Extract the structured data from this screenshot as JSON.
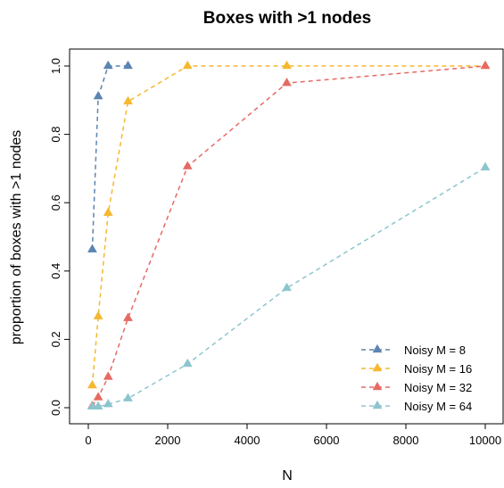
{
  "chart_data": {
    "type": "line",
    "title": "Boxes with >1 nodes",
    "xlabel": "N",
    "ylabel": "proportion of boxes with >1 nodes",
    "xlim": [
      0,
      10000
    ],
    "ylim": [
      0,
      1
    ],
    "x_ticks": [
      0,
      2000,
      4000,
      6000,
      8000,
      10000
    ],
    "y_ticks": [
      0.0,
      0.2,
      0.4,
      0.6,
      0.8,
      1.0
    ],
    "x_tick_labels": [
      "0",
      "2000",
      "4000",
      "6000",
      "8000",
      "10000"
    ],
    "y_tick_labels": [
      "0.0",
      "0.2",
      "0.4",
      "0.6",
      "0.8",
      "1.0"
    ],
    "grid": false,
    "legend_position": "bottom-right",
    "series": [
      {
        "name": "Noisy M = 8",
        "color": "#5b84b1",
        "marker": "triangle",
        "line_style": "dashed",
        "x": [
          100,
          250,
          500,
          1000
        ],
        "y": [
          0.463,
          0.911,
          1.0,
          1.0
        ]
      },
      {
        "name": "Noisy M = 16",
        "color": "#f5b82e",
        "marker": "triangle",
        "line_style": "dashed",
        "x": [
          100,
          250,
          500,
          1000,
          2500,
          5000,
          10000
        ],
        "y": [
          0.065,
          0.267,
          0.57,
          0.896,
          1.0,
          1.0,
          1.0
        ]
      },
      {
        "name": "Noisy M = 32",
        "color": "#e66a63",
        "marker": "triangle",
        "line_style": "dashed",
        "x": [
          100,
          250,
          500,
          1000,
          2500,
          5000,
          10000
        ],
        "y": [
          0.005,
          0.03,
          0.09,
          0.262,
          0.706,
          0.95,
          1.0
        ]
      },
      {
        "name": "Noisy M = 64",
        "color": "#8cc5cf",
        "marker": "triangle",
        "line_style": "dashed",
        "x": [
          100,
          250,
          500,
          1000,
          2500,
          5000,
          10000
        ],
        "y": [
          0.003,
          0.003,
          0.01,
          0.027,
          0.128,
          0.35,
          0.703
        ]
      }
    ]
  }
}
